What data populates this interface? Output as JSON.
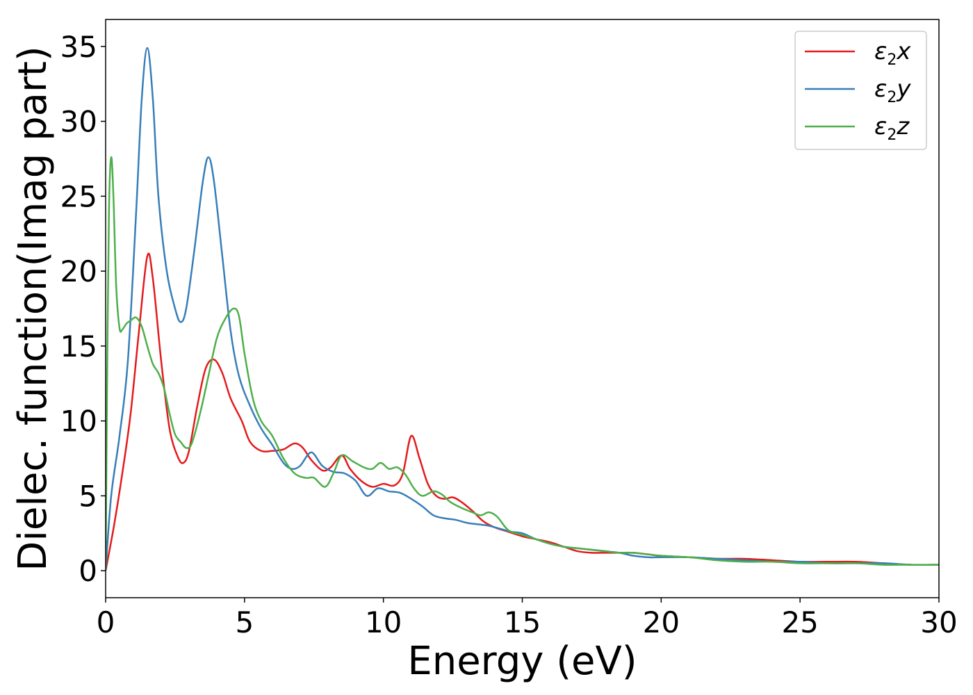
{
  "chart_data": {
    "type": "line",
    "xlabel": "Energy (eV)",
    "ylabel": "Dielec. function(Imag part)",
    "xlim": [
      0,
      30
    ],
    "ylim": [
      -1.8,
      36.8
    ],
    "xticks": [
      0,
      5,
      10,
      15,
      20,
      25,
      30
    ],
    "yticks": [
      0,
      5,
      10,
      15,
      20,
      25,
      30,
      35
    ],
    "grid": false,
    "legend_position": "top-right",
    "series": [
      {
        "name": "ε2x",
        "legend_base": "ε",
        "legend_sub": "2",
        "legend_tail": "x",
        "color": "#e41a1c",
        "points": [
          [
            0,
            0
          ],
          [
            0.3,
            3
          ],
          [
            0.6,
            6.5
          ],
          [
            0.9,
            10.5
          ],
          [
            1.2,
            16
          ],
          [
            1.5,
            21
          ],
          [
            1.7,
            19.5
          ],
          [
            2.0,
            14
          ],
          [
            2.3,
            9.5
          ],
          [
            2.6,
            7.6
          ],
          [
            2.8,
            7.2
          ],
          [
            3.0,
            8.0
          ],
          [
            3.3,
            11
          ],
          [
            3.6,
            13.5
          ],
          [
            3.9,
            14.1
          ],
          [
            4.2,
            13.2
          ],
          [
            4.5,
            11.5
          ],
          [
            4.9,
            10
          ],
          [
            5.2,
            8.6
          ],
          [
            5.6,
            8.0
          ],
          [
            6.0,
            8.0
          ],
          [
            6.4,
            8.1
          ],
          [
            6.8,
            8.5
          ],
          [
            7.1,
            8.2
          ],
          [
            7.4,
            7.4
          ],
          [
            7.8,
            6.7
          ],
          [
            8.1,
            6.9
          ],
          [
            8.5,
            7.7
          ],
          [
            8.8,
            6.8
          ],
          [
            9.2,
            6.0
          ],
          [
            9.6,
            5.6
          ],
          [
            10.0,
            5.8
          ],
          [
            10.4,
            5.7
          ],
          [
            10.7,
            6.5
          ],
          [
            11.0,
            9.0
          ],
          [
            11.3,
            7.5
          ],
          [
            11.6,
            5.8
          ],
          [
            11.9,
            5.0
          ],
          [
            12.2,
            4.8
          ],
          [
            12.5,
            4.9
          ],
          [
            12.8,
            4.6
          ],
          [
            13.2,
            4.0
          ],
          [
            13.6,
            3.3
          ],
          [
            14.0,
            2.9
          ],
          [
            14.5,
            2.6
          ],
          [
            15.0,
            2.3
          ],
          [
            15.5,
            2.1
          ],
          [
            16.0,
            1.9
          ],
          [
            16.5,
            1.6
          ],
          [
            17.0,
            1.3
          ],
          [
            17.5,
            1.2
          ],
          [
            18.0,
            1.2
          ],
          [
            18.5,
            1.2
          ],
          [
            19.0,
            1.2
          ],
          [
            19.5,
            1.1
          ],
          [
            20.0,
            1.0
          ],
          [
            21.0,
            0.9
          ],
          [
            22.0,
            0.8
          ],
          [
            23.0,
            0.8
          ],
          [
            24.0,
            0.7
          ],
          [
            25.0,
            0.6
          ],
          [
            26.0,
            0.6
          ],
          [
            27.0,
            0.6
          ],
          [
            28.0,
            0.5
          ],
          [
            29.0,
            0.4
          ],
          [
            30.0,
            0.4
          ]
        ]
      },
      {
        "name": "ε2y",
        "legend_base": "ε",
        "legend_sub": "2",
        "legend_tail": "y",
        "color": "#377eb8",
        "points": [
          [
            0,
            0
          ],
          [
            0.2,
            5
          ],
          [
            0.5,
            9
          ],
          [
            0.8,
            14
          ],
          [
            1.1,
            24
          ],
          [
            1.3,
            31.5
          ],
          [
            1.5,
            34.9
          ],
          [
            1.7,
            31.5
          ],
          [
            1.9,
            25
          ],
          [
            2.2,
            20
          ],
          [
            2.5,
            17.5
          ],
          [
            2.7,
            16.6
          ],
          [
            2.9,
            17.5
          ],
          [
            3.2,
            21.5
          ],
          [
            3.5,
            26
          ],
          [
            3.7,
            27.6
          ],
          [
            3.9,
            26
          ],
          [
            4.2,
            21
          ],
          [
            4.5,
            16
          ],
          [
            4.8,
            13
          ],
          [
            5.2,
            11
          ],
          [
            5.6,
            9.5
          ],
          [
            6.0,
            8.4
          ],
          [
            6.4,
            7.2
          ],
          [
            6.7,
            6.8
          ],
          [
            7.0,
            7.0
          ],
          [
            7.4,
            7.9
          ],
          [
            7.8,
            7.0
          ],
          [
            8.2,
            6.6
          ],
          [
            8.6,
            6.5
          ],
          [
            9.0,
            6.0
          ],
          [
            9.4,
            5.0
          ],
          [
            9.8,
            5.5
          ],
          [
            10.2,
            5.3
          ],
          [
            10.6,
            5.2
          ],
          [
            11.0,
            4.8
          ],
          [
            11.4,
            4.3
          ],
          [
            11.8,
            3.7
          ],
          [
            12.2,
            3.5
          ],
          [
            12.6,
            3.4
          ],
          [
            13.0,
            3.2
          ],
          [
            13.4,
            3.1
          ],
          [
            13.8,
            3.0
          ],
          [
            14.2,
            2.8
          ],
          [
            14.6,
            2.6
          ],
          [
            15.0,
            2.5
          ],
          [
            15.5,
            2.1
          ],
          [
            16.0,
            1.8
          ],
          [
            16.5,
            1.6
          ],
          [
            17.0,
            1.5
          ],
          [
            17.5,
            1.4
          ],
          [
            18.0,
            1.3
          ],
          [
            18.5,
            1.2
          ],
          [
            19.0,
            1.0
          ],
          [
            19.5,
            0.9
          ],
          [
            20.0,
            0.9
          ],
          [
            21.0,
            0.9
          ],
          [
            22.0,
            0.8
          ],
          [
            23.0,
            0.7
          ],
          [
            24.0,
            0.6
          ],
          [
            25.0,
            0.6
          ],
          [
            26.0,
            0.5
          ],
          [
            27.0,
            0.5
          ],
          [
            28.0,
            0.5
          ],
          [
            29.0,
            0.4
          ],
          [
            30.0,
            0.4
          ]
        ]
      },
      {
        "name": "ε2z",
        "legend_base": "ε",
        "legend_sub": "2",
        "legend_tail": "z",
        "color": "#4daf4a",
        "points": [
          [
            0,
            0
          ],
          [
            0.05,
            12
          ],
          [
            0.12,
            24
          ],
          [
            0.2,
            27.6
          ],
          [
            0.28,
            25
          ],
          [
            0.38,
            19
          ],
          [
            0.5,
            16.2
          ],
          [
            0.6,
            16.1
          ],
          [
            0.75,
            16.5
          ],
          [
            0.9,
            16.7
          ],
          [
            1.1,
            16.9
          ],
          [
            1.3,
            16.3
          ],
          [
            1.5,
            15.0
          ],
          [
            1.7,
            13.8
          ],
          [
            1.9,
            13.2
          ],
          [
            2.1,
            12.2
          ],
          [
            2.3,
            10.5
          ],
          [
            2.5,
            9.1
          ],
          [
            2.7,
            8.6
          ],
          [
            2.9,
            8.2
          ],
          [
            3.1,
            8.5
          ],
          [
            3.4,
            10.5
          ],
          [
            3.7,
            13
          ],
          [
            4.0,
            15.5
          ],
          [
            4.3,
            16.8
          ],
          [
            4.6,
            17.5
          ],
          [
            4.8,
            17.0
          ],
          [
            5.0,
            14.5
          ],
          [
            5.3,
            11.5
          ],
          [
            5.6,
            10.0
          ],
          [
            6.0,
            9.0
          ],
          [
            6.4,
            7.5
          ],
          [
            6.8,
            6.5
          ],
          [
            7.2,
            6.2
          ],
          [
            7.5,
            6.2
          ],
          [
            7.9,
            5.6
          ],
          [
            8.2,
            6.5
          ],
          [
            8.5,
            7.7
          ],
          [
            8.9,
            7.3
          ],
          [
            9.3,
            6.9
          ],
          [
            9.6,
            6.8
          ],
          [
            9.9,
            7.2
          ],
          [
            10.2,
            6.8
          ],
          [
            10.5,
            6.9
          ],
          [
            10.8,
            6.4
          ],
          [
            11.1,
            5.5
          ],
          [
            11.4,
            5.0
          ],
          [
            11.8,
            5.3
          ],
          [
            12.1,
            5.1
          ],
          [
            12.4,
            4.6
          ],
          [
            12.8,
            4.2
          ],
          [
            13.2,
            3.9
          ],
          [
            13.5,
            3.7
          ],
          [
            13.8,
            3.9
          ],
          [
            14.1,
            3.6
          ],
          [
            14.5,
            2.7
          ],
          [
            15.0,
            2.4
          ],
          [
            15.5,
            2.1
          ],
          [
            16.0,
            1.8
          ],
          [
            16.5,
            1.6
          ],
          [
            17.0,
            1.5
          ],
          [
            17.5,
            1.4
          ],
          [
            18.0,
            1.3
          ],
          [
            18.5,
            1.2
          ],
          [
            19.0,
            1.2
          ],
          [
            20.0,
            1.0
          ],
          [
            21.0,
            0.9
          ],
          [
            22.0,
            0.7
          ],
          [
            23.0,
            0.6
          ],
          [
            24.0,
            0.6
          ],
          [
            25.0,
            0.5
          ],
          [
            26.0,
            0.5
          ],
          [
            27.0,
            0.5
          ],
          [
            28.0,
            0.4
          ],
          [
            29.0,
            0.4
          ],
          [
            30.0,
            0.4
          ]
        ]
      }
    ]
  }
}
